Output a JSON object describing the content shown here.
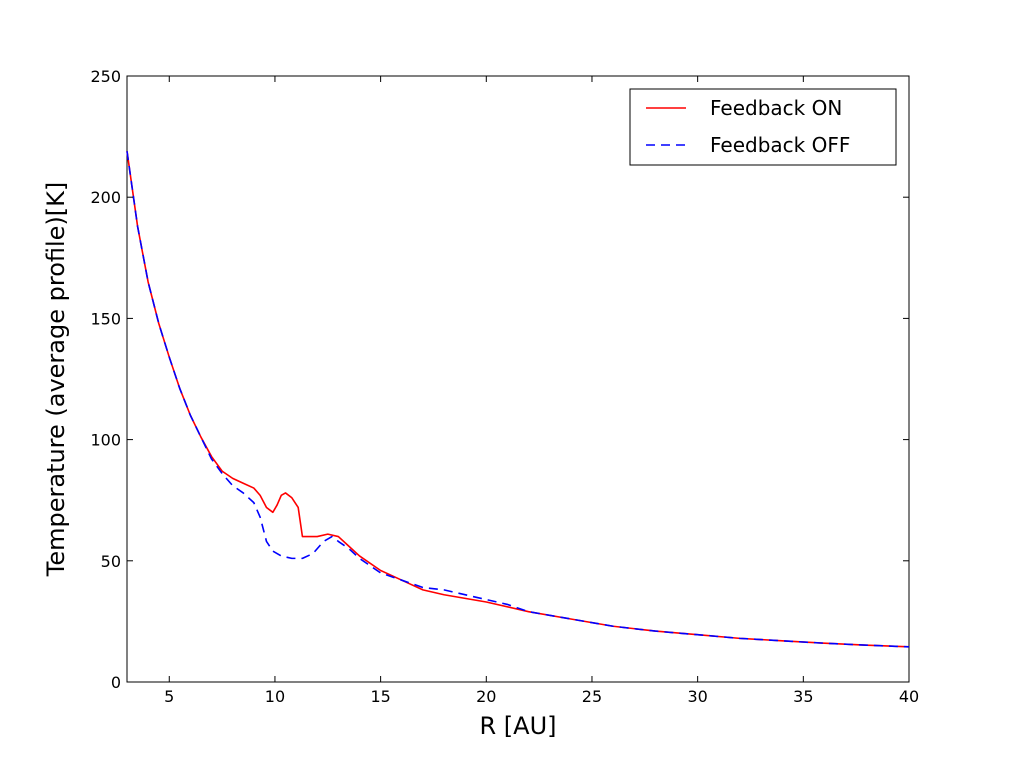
{
  "chart_data": {
    "type": "line",
    "xlabel": "R [AU]",
    "ylabel": "Temperature (average profile)[K]",
    "xlim": [
      3,
      40
    ],
    "ylim": [
      0,
      250
    ],
    "xticks": [
      5,
      10,
      15,
      20,
      25,
      30,
      35,
      40
    ],
    "yticks": [
      0,
      50,
      100,
      150,
      200,
      250
    ],
    "grid": false,
    "legend_position": "top-right",
    "series": [
      {
        "name": "Feedback ON",
        "color": "#ff0000",
        "style": "solid",
        "x": [
          3,
          3.5,
          4,
          4.5,
          5,
          5.5,
          6,
          6.5,
          7,
          7.5,
          8,
          8.5,
          9,
          9.3,
          9.6,
          9.9,
          10.1,
          10.3,
          10.5,
          10.8,
          11.1,
          11.3,
          11.6,
          12,
          12.5,
          13,
          13.5,
          14,
          15,
          16,
          17,
          18,
          20,
          22,
          24,
          26,
          28,
          30,
          32,
          34,
          36,
          38,
          40
        ],
        "y": [
          219,
          188,
          165,
          148,
          134,
          121,
          110,
          101,
          93,
          87,
          84,
          82,
          80,
          77,
          72,
          70,
          73,
          77,
          78,
          76,
          72,
          60,
          60,
          60,
          61,
          60,
          56,
          52,
          46,
          42,
          38,
          36,
          33,
          29,
          26,
          23,
          21,
          19.5,
          18,
          17,
          16,
          15.2,
          14.5
        ]
      },
      {
        "name": "Feedback OFF",
        "color": "#0000ff",
        "style": "dashed",
        "x": [
          3,
          3.5,
          4,
          4.5,
          5,
          5.5,
          6,
          6.5,
          7,
          7.5,
          8,
          8.5,
          9,
          9.3,
          9.6,
          9.9,
          10.3,
          10.8,
          11.3,
          11.8,
          12.3,
          12.7,
          13,
          13.5,
          14,
          15,
          16,
          17,
          18,
          20,
          21,
          22,
          24,
          26,
          28,
          30,
          32,
          34,
          36,
          38,
          40
        ],
        "y": [
          219,
          188,
          165,
          148,
          134,
          121,
          110,
          101,
          92,
          86,
          81,
          78,
          74,
          68,
          58,
          54,
          52,
          51,
          51,
          53,
          58,
          60,
          58,
          55,
          51,
          45,
          42,
          39,
          38,
          34,
          32,
          29,
          26,
          23,
          21,
          19.5,
          18,
          17,
          16,
          15.2,
          14.5
        ]
      }
    ]
  }
}
